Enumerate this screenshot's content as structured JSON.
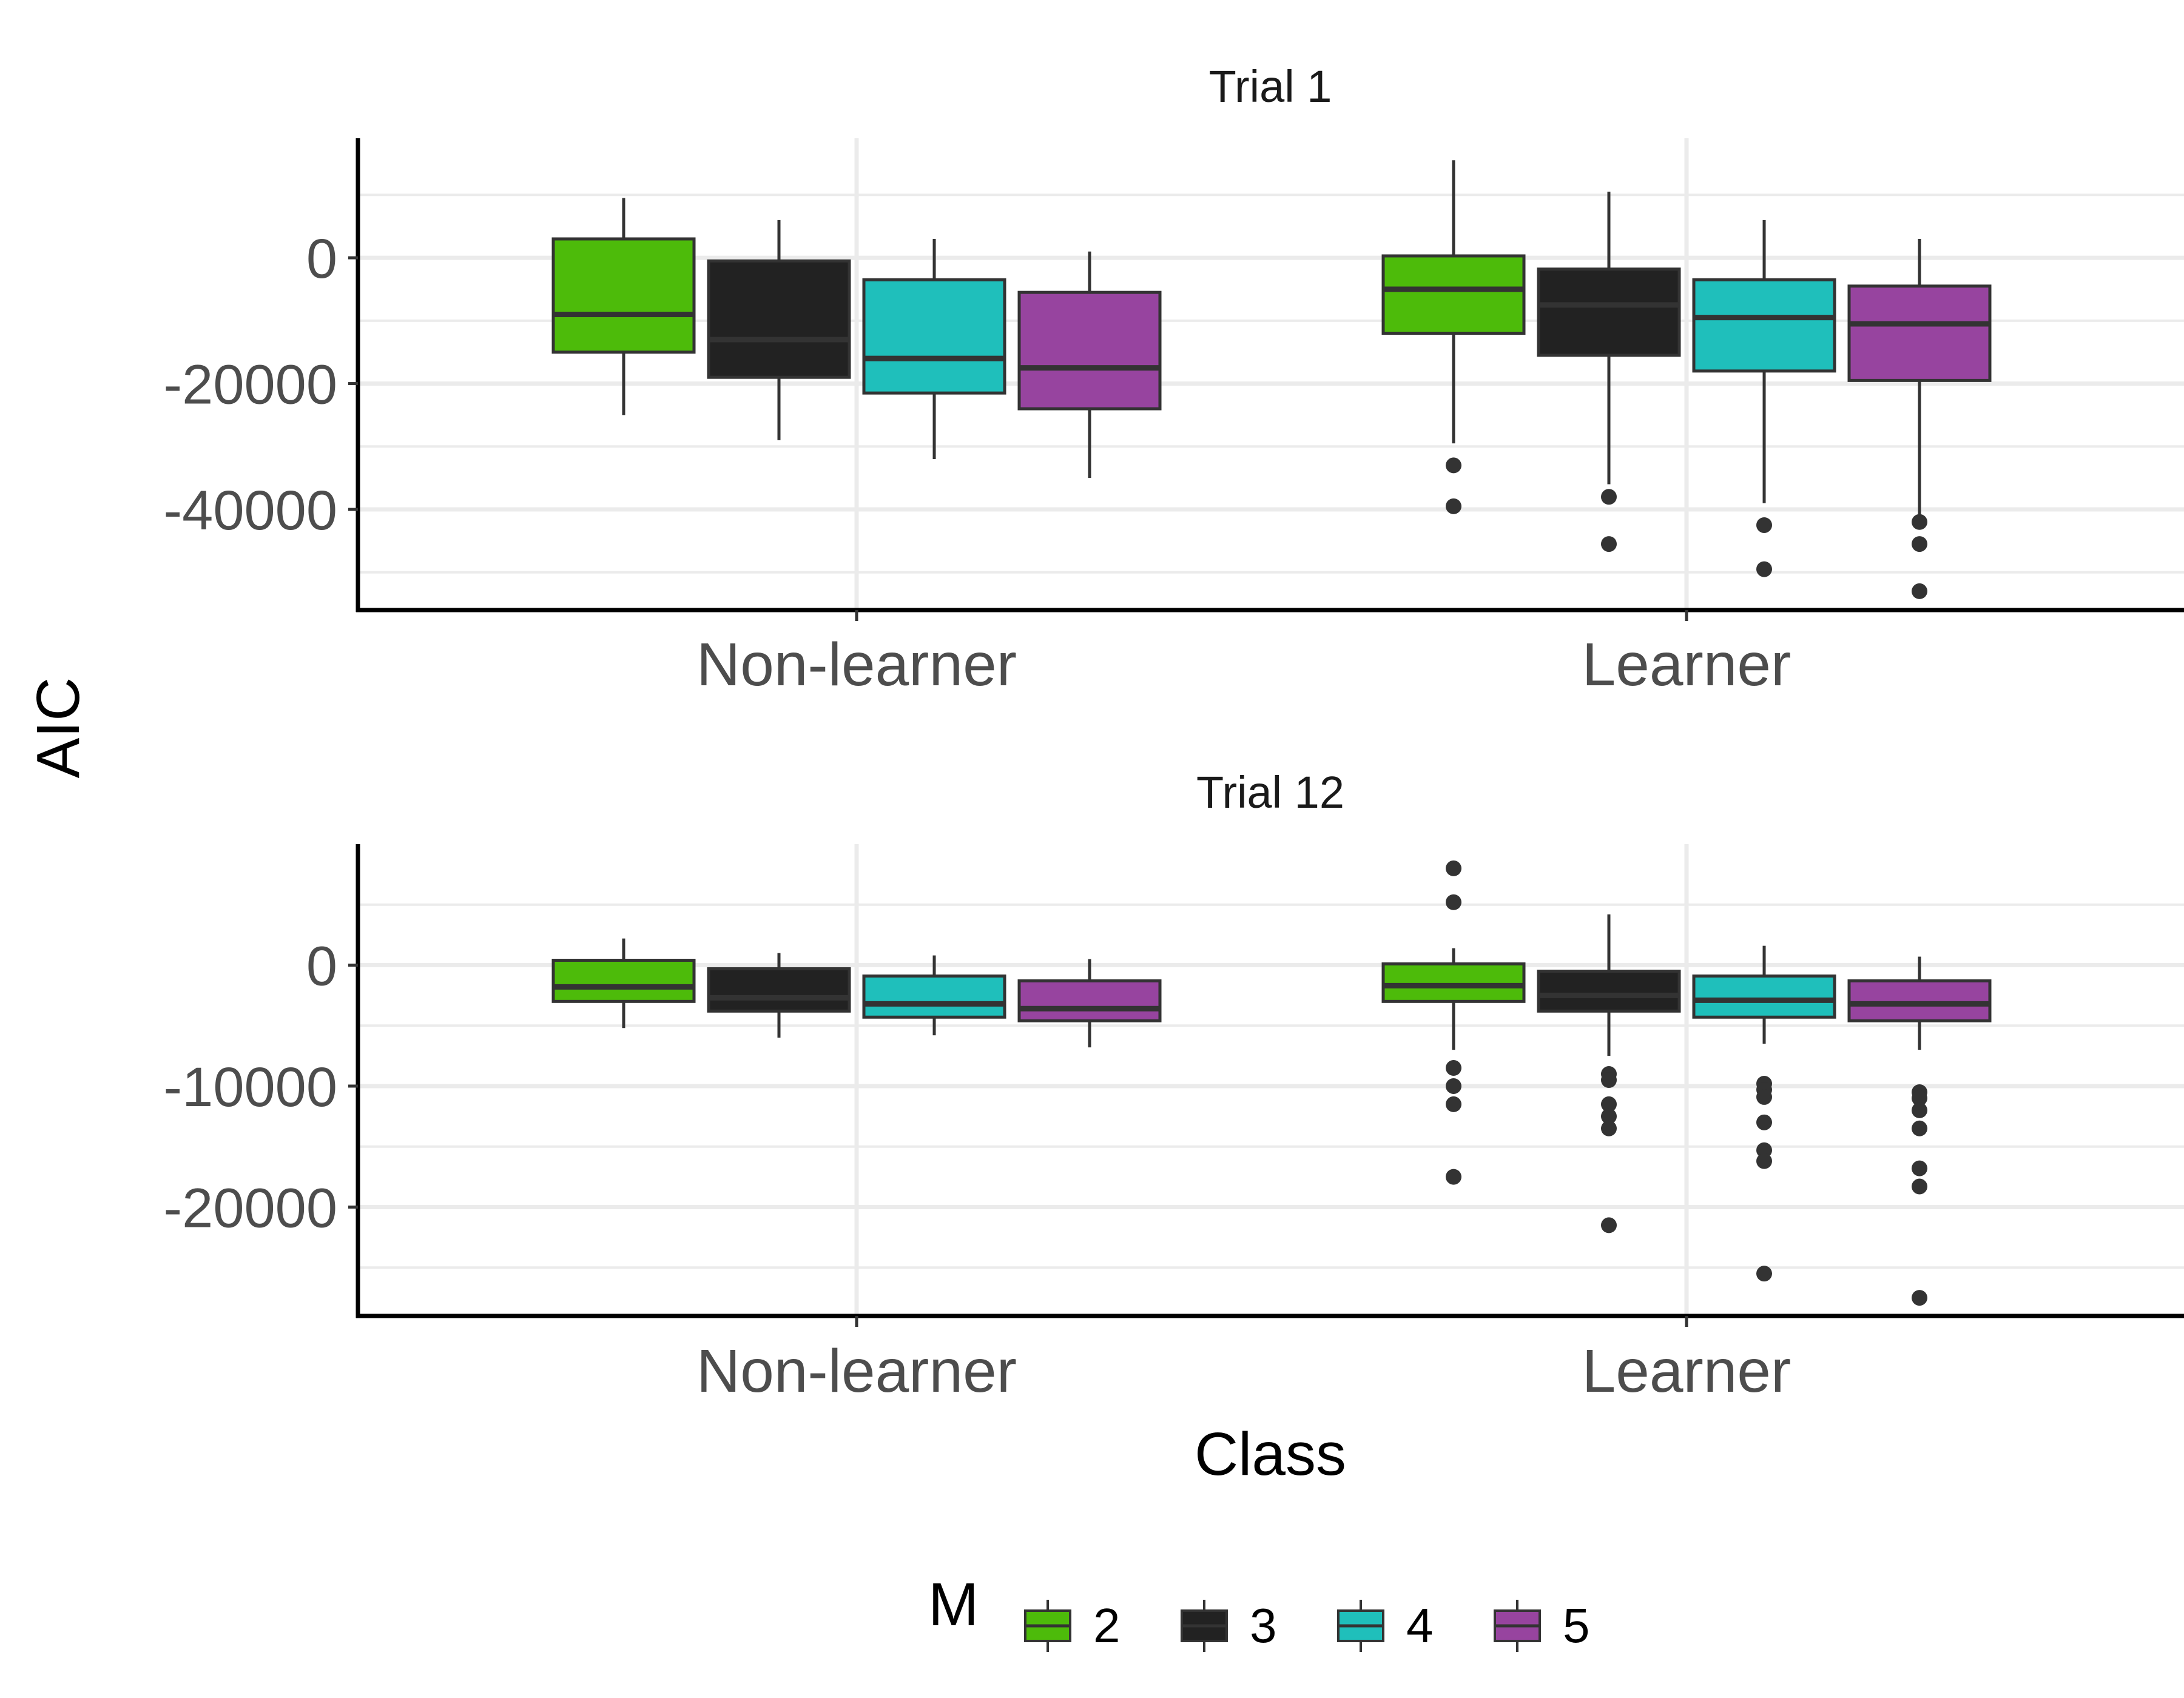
{
  "chart_data": {
    "type": "boxplot",
    "y_axis_title": "AIC",
    "x_axis_title": "Class",
    "categories": [
      "Non-learner",
      "Learner"
    ],
    "legend": {
      "title": "M",
      "position": "bottom",
      "items": [
        {
          "label": "2",
          "color": "#4dbb0a"
        },
        {
          "label": "3",
          "color": "#222222"
        },
        {
          "label": "4",
          "color": "#1fbfbb"
        },
        {
          "label": "5",
          "color": "#97449f"
        }
      ]
    },
    "grid": true,
    "panels": [
      {
        "title": "Trial 1",
        "ylim": [
          -56000,
          19000
        ],
        "yticks": [
          0,
          -20000,
          -40000
        ],
        "yticklabels": [
          "0",
          "-20000",
          "-40000"
        ],
        "minor_ticks": [
          10000,
          -10000,
          -30000,
          -50000
        ],
        "groups": [
          {
            "category": "Non-learner",
            "boxes": [
              {
                "m": "2",
                "whisker_low": -25000,
                "q1": -15000,
                "median": -9000,
                "q3": 3000,
                "whisker_high": 9500,
                "outliers": []
              },
              {
                "m": "3",
                "whisker_low": -29000,
                "q1": -19000,
                "median": -13000,
                "q3": -500,
                "whisker_high": 6000,
                "outliers": []
              },
              {
                "m": "4",
                "whisker_low": -32000,
                "q1": -21500,
                "median": -16000,
                "q3": -3500,
                "whisker_high": 3000,
                "outliers": []
              },
              {
                "m": "5",
                "whisker_low": -35000,
                "q1": -24000,
                "median": -17500,
                "q3": -5500,
                "whisker_high": 1000,
                "outliers": []
              }
            ]
          },
          {
            "category": "Learner",
            "boxes": [
              {
                "m": "2",
                "whisker_low": -29500,
                "q1": -12000,
                "median": -5000,
                "q3": 300,
                "whisker_high": 15500,
                "outliers": [
                  -33000,
                  -39500
                ]
              },
              {
                "m": "3",
                "whisker_low": -36000,
                "q1": -15500,
                "median": -7500,
                "q3": -1800,
                "whisker_high": 10500,
                "outliers": [
                  -38000,
                  -45500
                ]
              },
              {
                "m": "4",
                "whisker_low": -39000,
                "q1": -18000,
                "median": -9500,
                "q3": -3500,
                "whisker_high": 6000,
                "outliers": [
                  -42500,
                  -49500
                ]
              },
              {
                "m": "5",
                "whisker_low": -42000,
                "q1": -19500,
                "median": -10500,
                "q3": -4500,
                "whisker_high": 3000,
                "outliers": [
                  -42000,
                  -45500,
                  -53000
                ]
              }
            ]
          }
        ]
      },
      {
        "title": "Trial 12",
        "ylim": [
          -29000,
          10000
        ],
        "yticks": [
          0,
          -10000,
          -20000
        ],
        "yticklabels": [
          "0",
          "-10000",
          "-20000"
        ],
        "minor_ticks": [
          5000,
          -5000,
          -15000,
          -25000
        ],
        "groups": [
          {
            "category": "Non-learner",
            "boxes": [
              {
                "m": "2",
                "whisker_low": -5200,
                "q1": -3000,
                "median": -1800,
                "q3": 400,
                "whisker_high": 2200,
                "outliers": []
              },
              {
                "m": "3",
                "whisker_low": -6000,
                "q1": -3800,
                "median": -2700,
                "q3": -300,
                "whisker_high": 1000,
                "outliers": []
              },
              {
                "m": "4",
                "whisker_low": -5800,
                "q1": -4300,
                "median": -3200,
                "q3": -900,
                "whisker_high": 800,
                "outliers": []
              },
              {
                "m": "5",
                "whisker_low": -6800,
                "q1": -4600,
                "median": -3600,
                "q3": -1300,
                "whisker_high": 500,
                "outliers": []
              }
            ]
          },
          {
            "category": "Learner",
            "boxes": [
              {
                "m": "2",
                "whisker_low": -7000,
                "q1": -3000,
                "median": -1700,
                "q3": 100,
                "whisker_high": 1400,
                "outliers": [
                  8000,
                  5200,
                  -8500,
                  -10000,
                  -11500,
                  -17500
                ]
              },
              {
                "m": "3",
                "whisker_low": -7500,
                "q1": -3800,
                "median": -2500,
                "q3": -500,
                "whisker_high": 4200,
                "outliers": [
                  -9000,
                  -9500,
                  -11500,
                  -12500,
                  -13500,
                  -21500
                ]
              },
              {
                "m": "4",
                "whisker_low": -6500,
                "q1": -4300,
                "median": -2900,
                "q3": -900,
                "whisker_high": 1600,
                "outliers": [
                  -9800,
                  -10300,
                  -10900,
                  -13000,
                  -15300,
                  -16200,
                  -25500
                ]
              },
              {
                "m": "5",
                "whisker_low": -7000,
                "q1": -4600,
                "median": -3200,
                "q3": -1300,
                "whisker_high": 700,
                "outliers": [
                  -10500,
                  -11000,
                  -12000,
                  -13500,
                  -16800,
                  -18300,
                  -27500
                ]
              }
            ]
          }
        ]
      }
    ]
  }
}
